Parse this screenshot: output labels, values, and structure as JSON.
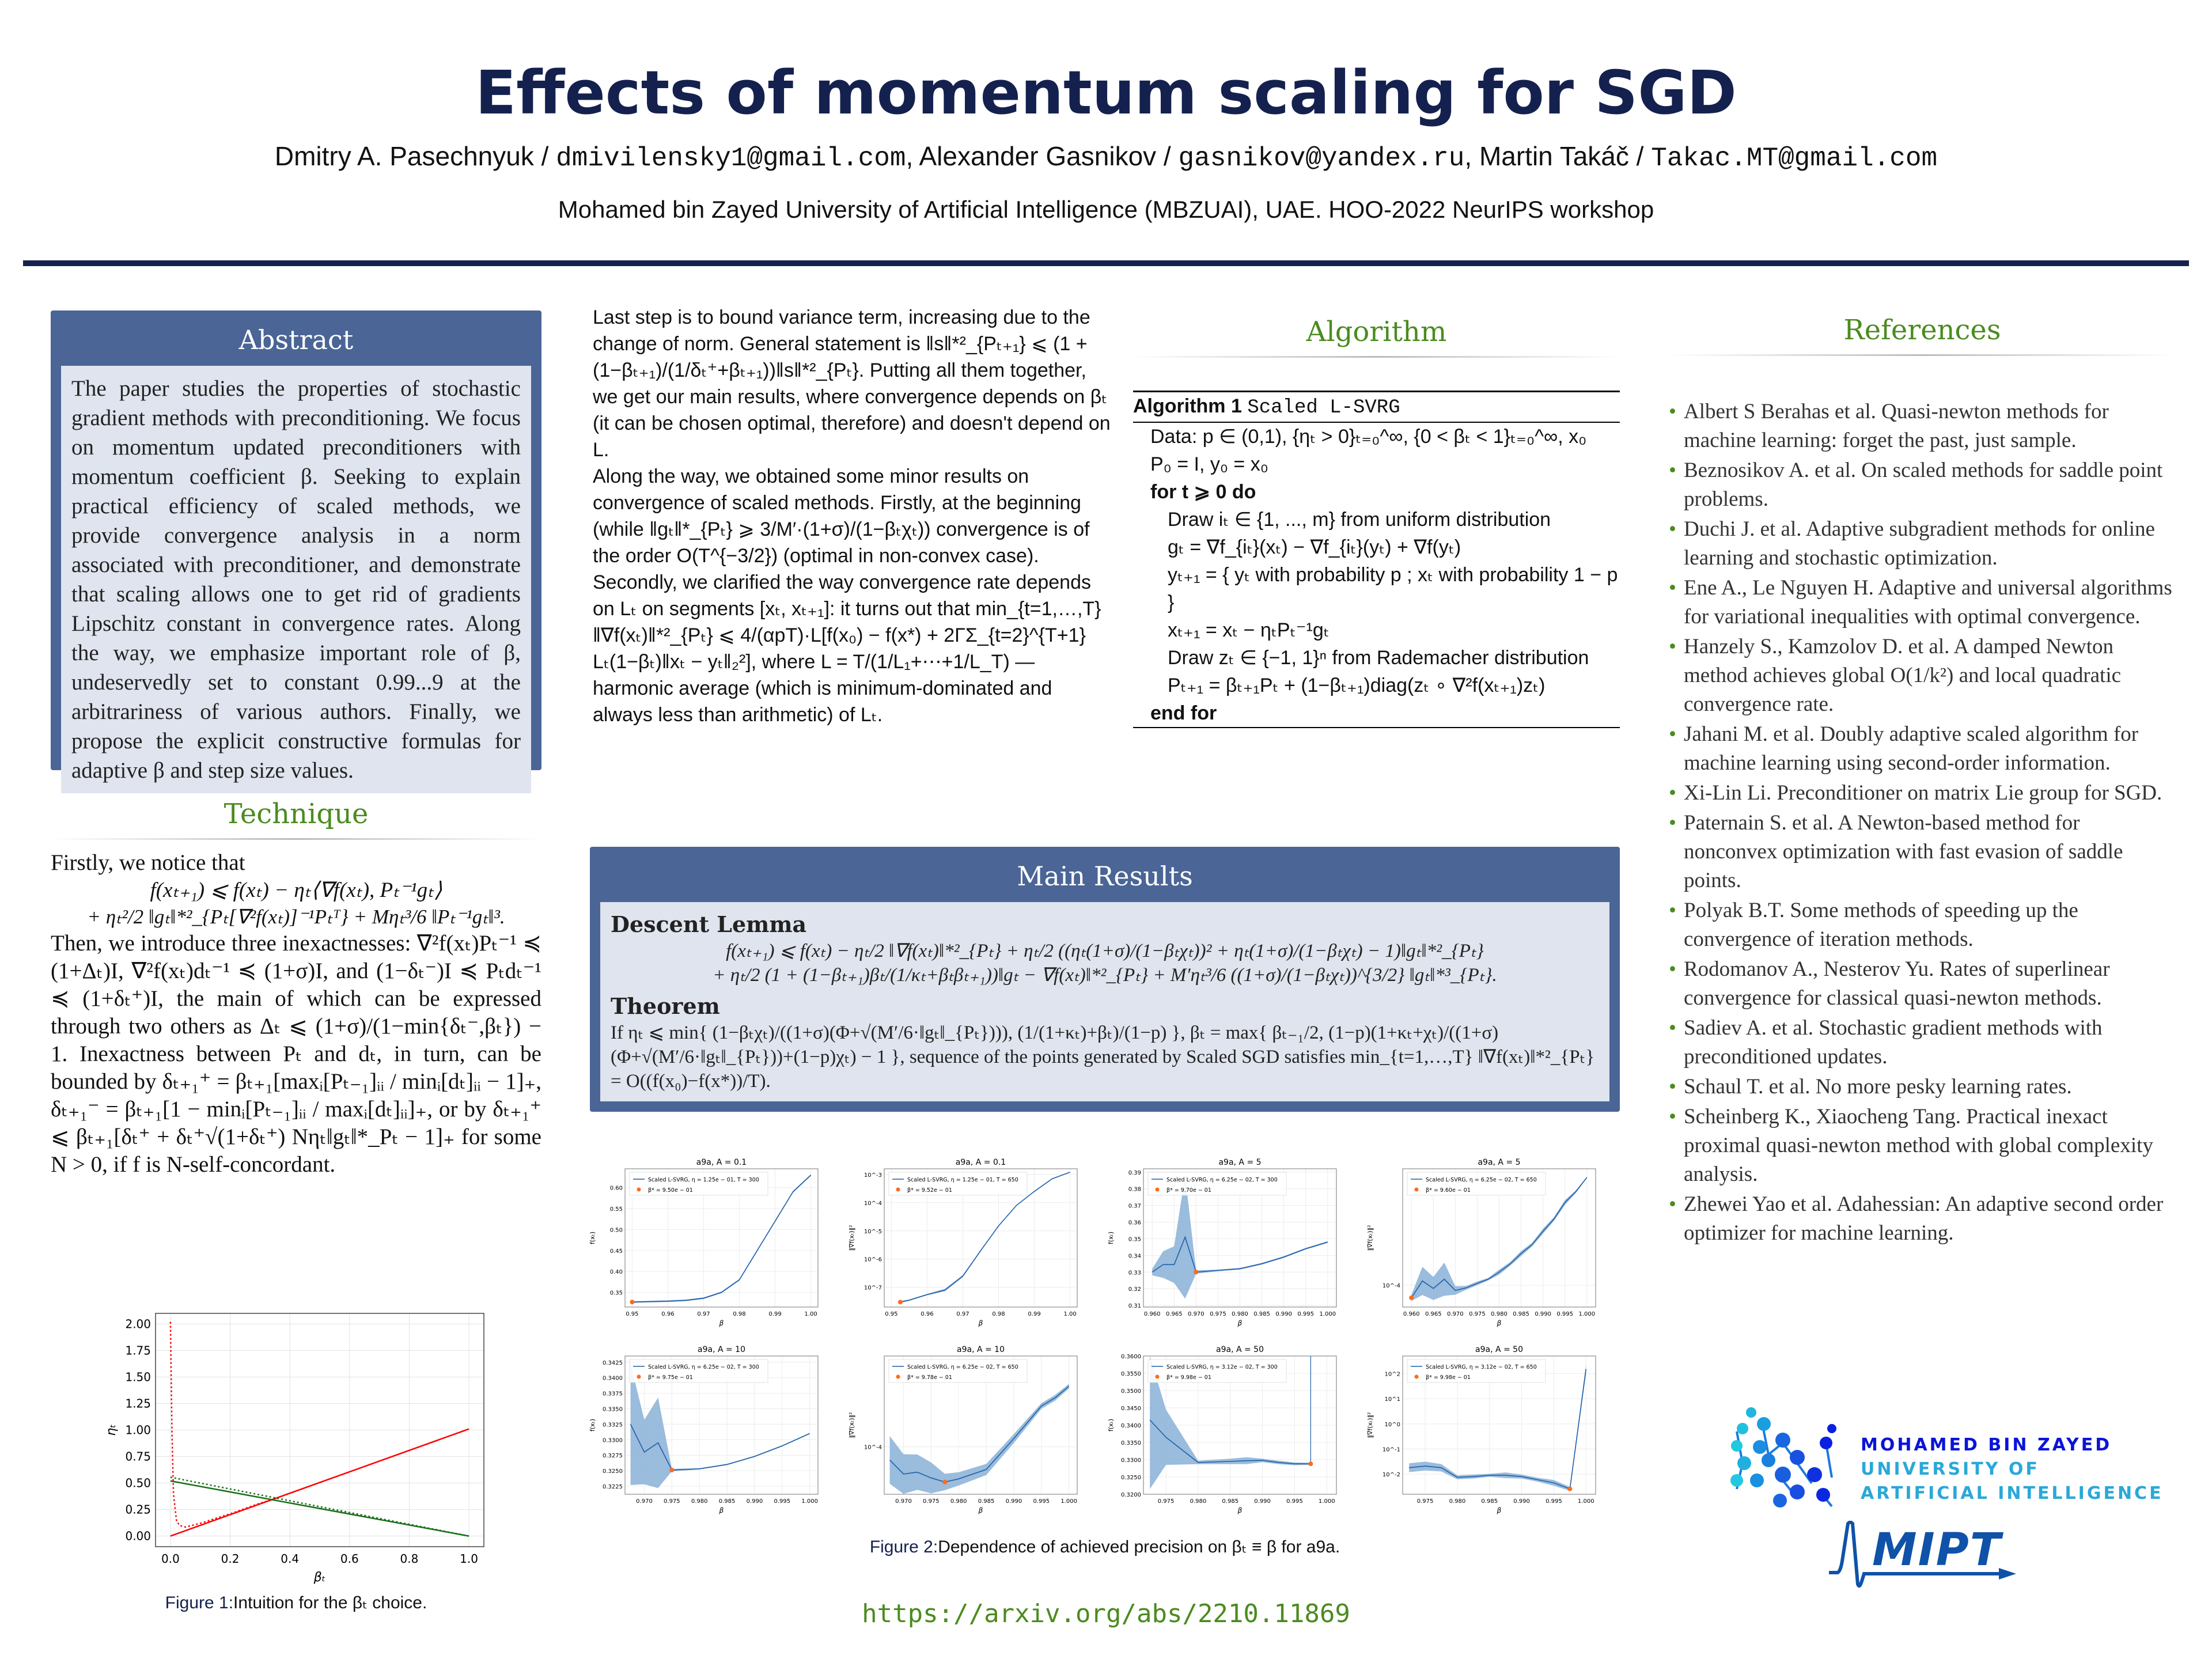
{
  "header": {
    "title": "Effects of momentum scaling for SGD",
    "author1": "Dmitry A. Pasechnyuk / ",
    "email1": "dmivilensky1@gmail.com",
    "author2": ", Alexander Gasnikov / ",
    "email2": "gasnikov@yandex.ru",
    "author3": ", Martin Takáč / ",
    "email3": "Takac.MT@gmail.com",
    "affiliation": "Mohamed bin Zayed University of Artificial Intelligence (MBZUAI), UAE. HOO-2022 NeurIPS workshop"
  },
  "abstract": {
    "title": "Abstract",
    "text": "The paper studies the properties of stochastic gradient methods with preconditioning. We focus on momentum updated preconditioners with momentum coefficient β. Seeking to explain practical efficiency of scaled methods, we provide convergence analysis in a norm associated with preconditioner, and demonstrate that scaling allows one to get rid of gradients Lipschitz constant in convergence rates. Along the way, we emphasize important role of β, undeservedly set to constant 0.99...9 at the arbitrariness of various authors. Finally, we propose the explicit constructive formulas for adaptive β and step size values."
  },
  "technique": {
    "title": "Technique",
    "intro": "Firstly, we notice that",
    "eq1": "f(xₜ₊₁) ⩽ f(xₜ) − ηₜ⟨∇f(xₜ), Pₜ⁻¹gₜ⟩",
    "eq2": "+ ηₜ²/2 ‖gₜ‖*²_{Pₜ[∇²f(xₜ)]⁻¹Pₜᵀ} + Mηₜ³/6 ‖Pₜ⁻¹gₜ‖³.",
    "text": "Then, we introduce three inexactnesses: ∇²f(xₜ)Pₜ⁻¹ ≼ (1+Δₜ)I, ∇²f(xₜ)dₜ⁻¹ ≼ (1+σ)I, and (1−δₜ⁻)I ≼ Pₜdₜ⁻¹ ≼ (1+δₜ⁺)I, the main of which can be expressed through two others as Δₜ ⩽ (1+σ)/(1−min{δₜ⁻,βₜ}) − 1. Inexactness between Pₜ and dₜ, in turn, can be bounded by δₜ₊₁⁺ = βₜ₊₁[maxᵢ[Pₜ₋₁]ᵢᵢ / minᵢ[dₜ]ᵢᵢ − 1]₊, δₜ₊₁⁻ = βₜ₊₁[1 − minᵢ[Pₜ₋₁]ᵢᵢ / maxᵢ[dₜ]ᵢᵢ]₊, or by δₜ₊₁⁺ ⩽ βₜ₊₁[δₜ⁺ + δₜ⁺√(1+δₜ⁺) Nηₜ‖gₜ‖*_Pₜ − 1]₊ for some N > 0, if f is N-self-concordant."
  },
  "figure1": {
    "label": "Figure 1:",
    "caption": "Intuition for the βₜ choice.",
    "chart_data": {
      "type": "line",
      "xlabel": "βₜ",
      "ylabel": "ηₜ",
      "xlim": [
        -0.05,
        1.05
      ],
      "ylim": [
        -0.1,
        2.1
      ],
      "xticks": [
        "0.0",
        "0.2",
        "0.4",
        "0.6",
        "0.8",
        "1.0"
      ],
      "yticks": [
        "0.00",
        "0.25",
        "0.50",
        "0.75",
        "1.00",
        "1.25",
        "1.50",
        "1.75",
        "2.00"
      ],
      "series": [
        {
          "name": "red-solid",
          "color": "#ff0000",
          "dash": false,
          "x": [
            0,
            1
          ],
          "y": [
            0,
            1.01
          ]
        },
        {
          "name": "red-dotted",
          "color": "#ff0000",
          "dash": true,
          "x": [
            0,
            0.005,
            0.01,
            0.02,
            0.03,
            0.05,
            0.1,
            0.2,
            0.3,
            0.35
          ],
          "y": [
            2.02,
            1.0,
            0.4,
            0.15,
            0.1,
            0.085,
            0.12,
            0.21,
            0.31,
            0.35
          ]
        },
        {
          "name": "green-solid",
          "color": "#1a6e1a",
          "dash": false,
          "x": [
            0,
            1
          ],
          "y": [
            0.52,
            0.0
          ]
        },
        {
          "name": "green-dotted",
          "color": "#1a6e1a",
          "dash": true,
          "x": [
            0,
            1
          ],
          "y": [
            0.555,
            0.0
          ]
        }
      ]
    }
  },
  "col2": {
    "p1": "Last step is to bound variance term, increasing due to the change of norm. General statement is ‖s‖*²_{Pₜ₊₁} ⩽ (1 + (1−βₜ₊₁)/(1/δₜ⁺+βₜ₊₁))‖s‖*²_{Pₜ}. Putting all them together, we get our main results, where convergence depends on βₜ (it can be chosen optimal, therefore) and doesn't depend on L.",
    "p2": "Along the way, we obtained some minor results on convergence of scaled methods. Firstly, at the beginning (while ‖gₜ‖*_{Pₜ} ⩾ 3/M′·(1+σ)/(1−βₜχₜ)) convergence is of the order O(T^{−3/2}) (optimal in non-convex case). Secondly, we clarified the way convergence rate depends on Lₜ on segments [xₜ, xₜ₊₁]: it turns out that min_{t=1,…,T} ‖∇f(xₜ)‖*²_{Pₜ} ⩽ 4/(αpT)·L[f(x₀) − f(x*) + 2ΓΣ_{t=2}^{T+1} Lₜ(1−βₜ)‖xₜ − yₜ‖₂²], where L = T/(1/L₁+⋯+1/L_T) — harmonic average (which is minimum-dominated and always less than arithmetic) of Lₜ."
  },
  "algorithm": {
    "title": "Algorithm",
    "header": "Algorithm 1",
    "name": "Scaled L-SVRG",
    "lines": [
      "Data:  p ∈ (0,1), {ηₜ > 0}ₜ₌₀^∞, {0 < βₜ < 1}ₜ₌₀^∞, x₀",
      "P₀ = I, y₀ = x₀",
      "for t ⩾ 0 do",
      "Draw iₜ ∈ {1, ..., m} from uniform distribution",
      "gₜ = ∇f_{iₜ}(xₜ) − ∇f_{iₜ}(yₜ) + ∇f(yₜ)",
      "yₜ₊₁ = { yₜ with probability p ; xₜ with probability 1 − p }",
      "xₜ₊₁ = xₜ − ηₜPₜ⁻¹gₜ",
      "Draw zₜ ∈ {−1, 1}ⁿ from Rademacher distribution",
      "Pₜ₊₁ = βₜ₊₁Pₜ + (1−βₜ₊₁)diag(zₜ ∘ ∇²f(xₜ₊₁)zₜ)",
      "end for"
    ]
  },
  "results": {
    "title": "Main Results",
    "lemma_title": "Descent Lemma",
    "lemma_eq1": "f(xₜ₊₁) ⩽ f(xₜ) − ηₜ/2 ‖∇f(xₜ)‖*²_{Pₜ} + ηₜ/2 ((ηₜ(1+σ)/(1−βₜχₜ))² + ηₜ(1+σ)/(1−βₜχₜ) − 1)‖gₜ‖*²_{Pₜ}",
    "lemma_eq2": "+ ηₜ/2 (1 + (1−βₜ₊₁)βₜ/(1/κₜ+βₜβₜ₊₁))‖gₜ − ∇f(xₜ)‖*²_{Pₜ} + M′ηₜ³/6 ((1+σ)/(1−βₜχₜ))^{3/2} ‖gₜ‖*³_{Pₜ}.",
    "theorem_title": "Theorem",
    "theorem_text": "If ηₜ ⩽ min{ (1−βₜχₜ)/((1+σ)(Φ+√(M′/6·‖gₜ‖_{Pₜ}))), (1/(1+κₜ)+βₜ)/(1−p) }, βₜ = max{ βₜ₋₁/2, (1−p)(1+κₜ+χₜ)/((1+σ)(Φ+√(M′/6·‖gₜ‖_{Pₜ}))+(1−p)χₜ) − 1 }, sequence of the points generated by Scaled SGD satisfies min_{t=1,…,T} ‖∇f(xₜ)‖*²_{Pₜ} = O((f(x₀)−f(x*))/T)."
  },
  "figure2": {
    "label": "Figure 2:",
    "caption": "Dependence of achieved precision on βₜ ≡ β for a9a.",
    "chart_data": [
      {
        "type": "line",
        "title": "a9a, A = 0.1",
        "ylabel": "f(xₜ)",
        "xlabel": "β",
        "log": false,
        "legend": "Scaled L-SVRG, η = 1.25e − 01, T = 300",
        "star_label": "β* = 9.50e − 01",
        "xlim": [
          0.948,
          1.002
        ],
        "ylim": [
          0.315,
          0.645
        ],
        "xticks": [
          0.95,
          0.96,
          0.97,
          0.98,
          0.99,
          1.0
        ],
        "yticks": [
          0.35,
          0.4,
          0.45,
          0.5,
          0.55,
          0.6
        ],
        "x": [
          0.95,
          0.96,
          0.965,
          0.97,
          0.975,
          0.98,
          0.985,
          0.99,
          0.995,
          1.0
        ],
        "y": [
          0.327,
          0.329,
          0.331,
          0.336,
          0.35,
          0.38,
          0.45,
          0.52,
          0.59,
          0.63
        ],
        "spread": [
          0.002,
          0.002,
          0.002,
          0.002,
          0.002,
          0.002,
          0.002,
          0.002,
          0.002,
          0.002
        ],
        "star": [
          0.95,
          0.327
        ]
      },
      {
        "type": "line",
        "title": "a9a, A = 0.1",
        "ylabel": "‖∇f(xₜ)‖²",
        "xlabel": "β",
        "log": true,
        "legend": "Scaled L-SVRG, η = 1.25e − 01, T = 650",
        "star_label": "β* = 9.52e − 01",
        "xlim": [
          0.948,
          1.002
        ],
        "ylim": [
          -7.7,
          -2.8
        ],
        "xticks": [
          0.95,
          0.96,
          0.97,
          0.98,
          0.99,
          1.0
        ],
        "yticks": [
          -7,
          -6,
          -5,
          -4,
          -3
        ],
        "x": [
          0.9525,
          0.955,
          0.96,
          0.965,
          0.97,
          0.975,
          0.98,
          0.985,
          0.99,
          0.995,
          1.0
        ],
        "y": [
          3e-08,
          3.5e-08,
          5.5e-08,
          8e-08,
          2.5e-07,
          2e-06,
          1.5e-05,
          8e-05,
          0.00025,
          0.0007,
          0.0012
        ],
        "spread": [
          0.08,
          0.05,
          0.05,
          0.1,
          0.1,
          0.05,
          0.03,
          0.03,
          0.03,
          0.03,
          0.03
        ],
        "star": [
          0.9525,
          3e-08
        ]
      },
      {
        "type": "line",
        "title": "a9a, A = 5",
        "ylabel": "f(xₜ)",
        "xlabel": "β",
        "log": false,
        "legend": "Scaled L-SVRG, η = 6.25e − 02, T = 300",
        "star_label": "β* = 9.70e − 01",
        "xlim": [
          0.958,
          1.002
        ],
        "ylim": [
          0.309,
          0.392
        ],
        "xticks": [
          0.96,
          0.965,
          0.97,
          0.975,
          0.98,
          0.985,
          0.99,
          0.995,
          1.0
        ],
        "yticks": [
          0.31,
          0.32,
          0.33,
          0.34,
          0.35,
          0.36,
          0.37,
          0.38,
          0.39
        ],
        "x": [
          0.96,
          0.9625,
          0.965,
          0.9675,
          0.97,
          0.975,
          0.98,
          0.985,
          0.99,
          0.995,
          1.0
        ],
        "y": [
          0.33,
          0.3345,
          0.3345,
          0.351,
          0.33,
          0.331,
          0.332,
          0.335,
          0.339,
          0.344,
          0.348
        ],
        "spread": [
          0.002,
          0.008,
          0.011,
          0.037,
          0.001,
          0.0005,
          0.0005,
          0.0005,
          0.0005,
          0.0005,
          0.0005
        ],
        "star": [
          0.97,
          0.33
        ]
      },
      {
        "type": "line",
        "title": "a9a, A = 5",
        "ylabel": "‖∇f(xₜ)‖²",
        "xlabel": "β",
        "log": true,
        "legend": "Scaled L-SVRG, η = 6.25e − 02, T = 650",
        "star_label": "β* = 9.60e − 01",
        "xlim": [
          0.958,
          1.002
        ],
        "ylim": [
          -4.15,
          -3.2
        ],
        "xticks": [
          0.96,
          0.965,
          0.97,
          0.975,
          0.98,
          0.985,
          0.99,
          0.995,
          1.0
        ],
        "yticks": [
          -4
        ],
        "x": [
          0.96,
          0.9625,
          0.965,
          0.9675,
          0.97,
          0.9725,
          0.975,
          0.9775,
          0.98,
          0.9825,
          0.985,
          0.9875,
          0.99,
          0.9925,
          0.995,
          0.9975,
          1.0
        ],
        "y": [
          8.2e-05,
          0.000107,
          9.5e-05,
          0.00011,
          9.2e-05,
          9.6e-05,
          0.000103,
          0.00011,
          0.000123,
          0.00014,
          0.000165,
          0.00019,
          0.000235,
          0.000285,
          0.00037,
          0.00044,
          0.00055
        ],
        "spread": [
          0.05,
          0.25,
          0.2,
          0.3,
          0.07,
          0.03,
          0.03,
          0.02,
          0.04,
          0.03,
          0.04,
          0.03,
          0.04,
          0.03,
          0.04,
          0.02,
          0.01
        ],
        "star": [
          0.96,
          8.2e-05
        ]
      },
      {
        "type": "line",
        "title": "a9a, A = 10",
        "ylabel": "f(xₜ)",
        "xlabel": "β",
        "log": false,
        "legend": "Scaled L-SVRG, η = 6.25e − 02, T = 300",
        "star_label": "β* = 9.75e − 01",
        "xlim": [
          0.9665,
          1.0015
        ],
        "ylim": [
          0.3212,
          0.3435
        ],
        "xticks": [
          0.97,
          0.975,
          0.98,
          0.985,
          0.99,
          0.995,
          1.0
        ],
        "yticks": [
          0.3225,
          0.325,
          0.3275,
          0.33,
          0.3325,
          0.335,
          0.3375,
          0.34,
          0.3425
        ],
        "x": [
          0.9675,
          0.97,
          0.9725,
          0.975,
          0.98,
          0.985,
          0.99,
          0.995,
          1.0
        ],
        "y": [
          0.3325,
          0.328,
          0.3295,
          0.3251,
          0.3253,
          0.326,
          0.3273,
          0.329,
          0.331
        ],
        "spread": [
          0.0098,
          0.0052,
          0.0073,
          0.0002,
          0.0001,
          0.0001,
          0.0001,
          0.0001,
          0.0001
        ],
        "star": [
          0.975,
          0.3251
        ]
      },
      {
        "type": "line",
        "title": "a9a, A = 10",
        "ylabel": "‖∇f(xₜ)‖²",
        "xlabel": "β",
        "log": true,
        "legend": "Scaled L-SVRG, η = 6.25e − 02, T = 650",
        "star_label": "β* = 9.78e − 01",
        "xlim": [
          0.9665,
          1.0015
        ],
        "ylim": [
          -4.35,
          -3.33
        ],
        "xticks": [
          0.97,
          0.975,
          0.98,
          0.985,
          0.99,
          0.995,
          1.0
        ],
        "yticks": [
          -4
        ],
        "x": [
          0.9675,
          0.97,
          0.9725,
          0.975,
          0.9775,
          0.98,
          0.985,
          0.99,
          0.995,
          0.9975,
          1.0
        ],
        "y": [
          8e-05,
          6.3e-05,
          6.5e-05,
          5.9e-05,
          5.5e-05,
          5.8e-05,
          6.8e-05,
          0.000115,
          0.0002,
          0.00023,
          0.00028
        ],
        "spread": [
          0.5,
          0.4,
          0.35,
          0.3,
          0.15,
          0.12,
          0.1,
          0.08,
          0.05,
          0.05,
          0.04
        ],
        "star": [
          0.9775,
          5.5e-05
        ]
      },
      {
        "type": "line",
        "title": "a9a, A = 50",
        "ylabel": "f(xₜ)",
        "xlabel": "β",
        "log": false,
        "legend": "Scaled L-SVRG, η = 3.12e − 02, T = 300",
        "star_label": "β* = 9.98e − 01",
        "xlim": [
          0.9715,
          1.0015
        ],
        "ylim": [
          0.32,
          0.36
        ],
        "xticks": [
          0.975,
          0.98,
          0.985,
          0.99,
          0.995,
          1.0
        ],
        "yticks": [
          0.32,
          0.325,
          0.33,
          0.335,
          0.34,
          0.345,
          0.35,
          0.355,
          0.36
        ],
        "x": [
          0.9725,
          0.975,
          0.98,
          0.985,
          0.9875,
          0.99,
          0.9925,
          0.995,
          0.9975
        ],
        "y": [
          0.3415,
          0.3365,
          0.3292,
          0.3295,
          0.3297,
          0.3298,
          0.3292,
          0.3288,
          0.3288
        ],
        "spread": [
          0.02,
          0.008,
          0.0005,
          0.0008,
          0.001,
          0.0005,
          0.0005,
          0.0004,
          0.0003
        ],
        "star": [
          0.9975,
          0.3288
        ],
        "divergence_at": 0.9975
      },
      {
        "type": "line",
        "title": "a9a, A = 50",
        "ylabel": "‖∇f(xₜ)‖²",
        "xlabel": "β",
        "log": true,
        "legend": "Scaled L-SVRG, η = 3.12e − 02, T = 650",
        "star_label": "β* = 9.98e − 01",
        "xlim": [
          0.9715,
          1.0015
        ],
        "ylim": [
          -2.8,
          2.7
        ],
        "xticks": [
          0.975,
          0.98,
          0.985,
          0.99,
          0.995,
          1.0
        ],
        "yticks": [
          -2,
          -1,
          0,
          1,
          2
        ],
        "x": [
          0.9725,
          0.975,
          0.9775,
          0.98,
          0.9825,
          0.985,
          0.9875,
          0.99,
          0.9925,
          0.995,
          0.9975,
          1.0
        ],
        "y": [
          0.018,
          0.021,
          0.018,
          0.0075,
          0.008,
          0.009,
          0.009,
          0.008,
          0.006,
          0.0045,
          0.0026,
          150
        ],
        "spread": [
          0.5,
          0.5,
          0.4,
          0.2,
          0.2,
          0.15,
          0.3,
          0.2,
          0.2,
          0.3,
          0.2,
          0.5
        ],
        "star": [
          0.9975,
          0.0026
        ]
      }
    ]
  },
  "references": {
    "title": "References",
    "items": [
      "Albert S Berahas et al. Quasi-newton methods for machine learning: forget the past, just sample.",
      "Beznosikov A. et al. On scaled methods for saddle point problems.",
      "Duchi J. et al. Adaptive subgradient methods for online learning and stochastic optimization.",
      "Ene A., Le Nguyen H. Adaptive and universal algorithms for variational inequalities with optimal convergence.",
      "Hanzely S., Kamzolov D. et al. A damped Newton method achieves global O(1/k²) and local quadratic convergence rate.",
      "Jahani M. et al. Doubly adaptive scaled algorithm for machine learning using second-order information.",
      "Xi-Lin Li. Preconditioner on matrix Lie group for SGD.",
      "Paternain S. et al. A Newton-based method for nonconvex optimization with fast evasion of saddle points.",
      "Polyak B.T. Some methods of speeding up the convergence of iteration methods.",
      "Rodomanov A., Nesterov Yu. Rates of superlinear convergence for classical quasi-newton methods.",
      "Sadiev A. et al. Stochastic gradient methods with preconditioned updates.",
      "Schaul T. et al. No more pesky learning rates.",
      "Scheinberg K., Xiaocheng Tang. Practical inexact proximal quasi-newton method with global complexity analysis.",
      "Zhewei Yao et al. Adahessian: An adaptive second order optimizer for machine learning."
    ]
  },
  "logos": {
    "mbzuai_line1": "MOHAMED BIN ZAYED",
    "mbzuai_line2": "UNIVERSITY OF",
    "mbzuai_line3": "ARTIFICIAL INTELLIGENCE",
    "mipt": "MIPT"
  },
  "footer": {
    "url": "https://arxiv.org/abs/2210.11869"
  },
  "colors": {
    "navy": "#14214f",
    "box": "#4a6596",
    "green": "#4b8b1f",
    "plot_blue": "#1f5fa8",
    "band": "#8fb5d9",
    "star": "#ff6a1a"
  }
}
